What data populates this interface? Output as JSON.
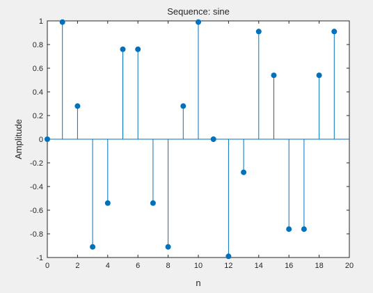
{
  "chart_data": {
    "type": "stem",
    "title": "Sequence: sine",
    "xlabel": "n",
    "ylabel": "Amplitude",
    "xlim": [
      0,
      20
    ],
    "ylim": [
      -1,
      1
    ],
    "xticks": [
      0,
      2,
      4,
      6,
      8,
      10,
      12,
      14,
      16,
      18,
      20
    ],
    "yticks": [
      -1,
      -0.8,
      -0.6,
      -0.4,
      -0.2,
      0,
      0.2,
      0.4,
      0.6,
      0.8,
      1
    ],
    "grid": false,
    "series": [
      {
        "x": [
          0,
          1,
          2,
          3,
          4,
          5,
          6,
          7,
          8,
          9,
          10,
          11,
          12,
          13,
          14,
          15,
          16,
          17,
          18,
          19
        ],
        "y": [
          0,
          0.99,
          0.28,
          -0.91,
          -0.54,
          0.76,
          0.76,
          -0.54,
          -0.91,
          0.28,
          0.99,
          0,
          -0.99,
          -0.28,
          0.91,
          0.54,
          -0.76,
          -0.76,
          0.54,
          0.91
        ],
        "color": "#0072BD"
      }
    ]
  }
}
